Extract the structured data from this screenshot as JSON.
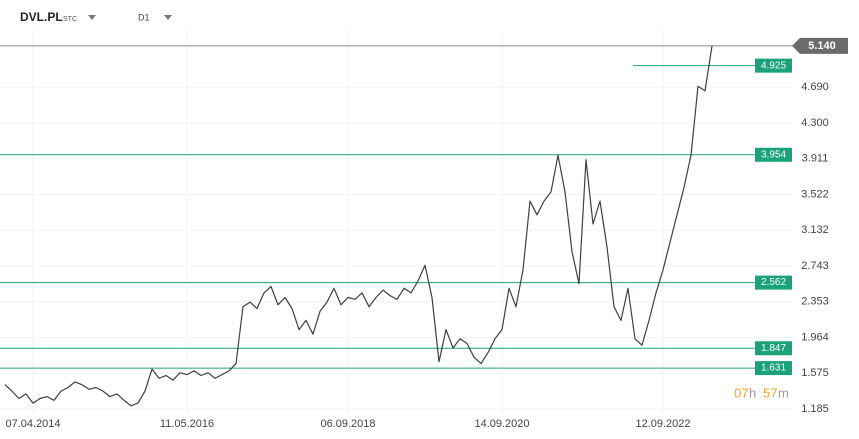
{
  "chart_data": {
    "type": "line",
    "symbol": "DVL.PL",
    "exchange": "STC",
    "interval": "D1",
    "timer": [
      "07",
      "h",
      "57",
      "m"
    ],
    "color": "#3a3f48",
    "level_color": "#1aa37a",
    "levels": [
      4.925,
      3.954,
      2.562,
      1.847,
      1.631
    ],
    "price_line": {
      "value": 5.14,
      "label": "5.140"
    },
    "ylim": [
      1.12,
      5.64
    ],
    "yticks": [
      {
        "value": 4.69,
        "label": "4.690"
      },
      {
        "value": 4.3,
        "label": "4.300"
      },
      3.911,
      3.522,
      3.132,
      2.743,
      2.353,
      1.964,
      1.575,
      1.185
    ],
    "grid": true,
    "categories": [
      null,
      null,
      null,
      null,
      "07.04.2014",
      null,
      null,
      null,
      null,
      null,
      null,
      null,
      null,
      null,
      null,
      null,
      null,
      null,
      null,
      null,
      null,
      null,
      null,
      null,
      null,
      null,
      "11.05.2016",
      null,
      null,
      null,
      null,
      null,
      null,
      null,
      null,
      null,
      null,
      null,
      null,
      null,
      null,
      null,
      null,
      null,
      null,
      null,
      null,
      null,
      null,
      "06.09.2018",
      null,
      null,
      null,
      null,
      null,
      null,
      null,
      null,
      null,
      null,
      null,
      null,
      null,
      null,
      null,
      null,
      null,
      null,
      null,
      null,
      null,
      "14.09.2020",
      null,
      null,
      null,
      null,
      null,
      null,
      null,
      null,
      null,
      null,
      null,
      null,
      null,
      null,
      null,
      null,
      null,
      null,
      null,
      null,
      null,
      null,
      "12.09.2022",
      null,
      null,
      null,
      null,
      null,
      null,
      null
    ],
    "values": [
      1.45,
      1.38,
      1.3,
      1.35,
      1.25,
      1.3,
      1.32,
      1.28,
      1.38,
      1.42,
      1.48,
      1.45,
      1.4,
      1.42,
      1.38,
      1.32,
      1.35,
      1.28,
      1.22,
      1.25,
      1.38,
      1.62,
      1.52,
      1.55,
      1.5,
      1.58,
      1.56,
      1.6,
      1.55,
      1.58,
      1.52,
      1.56,
      1.6,
      1.68,
      2.3,
      2.35,
      2.28,
      2.45,
      2.52,
      2.32,
      2.4,
      2.28,
      2.05,
      2.15,
      2.0,
      2.25,
      2.35,
      2.5,
      2.32,
      2.4,
      2.38,
      2.45,
      2.3,
      2.4,
      2.48,
      2.42,
      2.38,
      2.5,
      2.45,
      2.58,
      2.75,
      2.4,
      1.7,
      2.05,
      1.85,
      1.95,
      1.9,
      1.75,
      1.68,
      1.8,
      1.95,
      2.05,
      2.5,
      2.3,
      2.7,
      3.45,
      3.3,
      3.45,
      3.55,
      3.95,
      3.55,
      2.9,
      2.55,
      3.9,
      3.2,
      3.45,
      2.95,
      2.3,
      2.15,
      2.5,
      1.95,
      1.88,
      2.15,
      2.45,
      2.7,
      3.0,
      3.3,
      3.6,
      3.95,
      4.7,
      4.65,
      5.14
    ]
  }
}
